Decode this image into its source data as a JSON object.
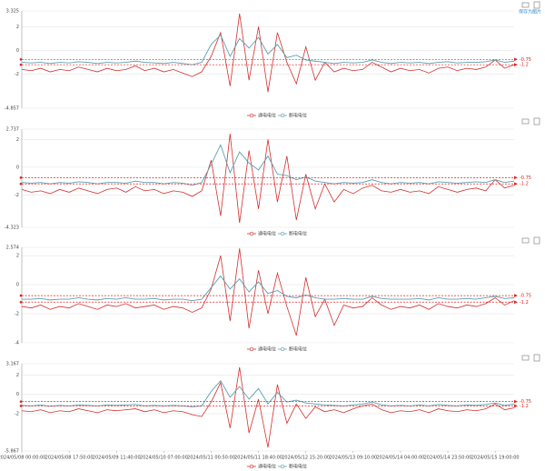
{
  "chart_data": [
    {
      "type": "line",
      "toolbox_label": "保存为图片",
      "ylim": [
        -4.857,
        3.325
      ],
      "yticks": [
        3.325,
        2,
        0,
        -2,
        -4.857
      ],
      "grid": true,
      "markLines": [
        -0.75,
        -1.2
      ],
      "markLineColor": "#e02020",
      "series": [
        {
          "name": "通电电位",
          "color": "#d42f2f",
          "values": [
            -1.6,
            -1.7,
            -1.5,
            -1.8,
            -1.6,
            -1.7,
            -1.4,
            -1.6,
            -1.8,
            -1.5,
            -1.7,
            -1.6,
            -1.3,
            -1.7,
            -1.5,
            -1.8,
            -1.6,
            -1.9,
            -2.2,
            -1.8,
            -0.5,
            1.5,
            -3.0,
            3.1,
            -2.5,
            2.0,
            -3.5,
            1.5,
            -1.0,
            -2.8,
            0.3,
            -2.5,
            -1.0,
            -1.8,
            -1.5,
            -1.7,
            -1.6,
            -1.0,
            -1.4,
            -1.8,
            -1.5,
            -1.7,
            -1.6,
            -1.9,
            -1.5,
            -1.4,
            -1.7,
            -1.5,
            -1.6,
            -1.4,
            -0.8,
            -1.5,
            -1.2
          ]
        },
        {
          "name": "断电电位",
          "color": "#5b9fb0",
          "values": [
            -1.0,
            -1.05,
            -1.0,
            -1.1,
            -1.0,
            -1.05,
            -0.95,
            -1.0,
            -1.1,
            -1.0,
            -1.05,
            -1.0,
            -0.9,
            -1.0,
            -1.05,
            -1.1,
            -1.0,
            -1.1,
            -1.2,
            -1.0,
            0.5,
            1.3,
            -0.5,
            1.0,
            0.2,
            1.1,
            -0.3,
            0.5,
            -0.6,
            -0.4,
            -0.8,
            -0.9,
            -1.0,
            -1.1,
            -1.0,
            -1.05,
            -1.0,
            -0.8,
            -1.0,
            -1.1,
            -1.0,
            -1.05,
            -1.0,
            -1.1,
            -1.0,
            -0.95,
            -1.05,
            -1.0,
            -1.0,
            -0.95,
            -0.8,
            -1.0,
            -0.9
          ]
        }
      ]
    },
    {
      "type": "line",
      "ylim": [
        -4.323,
        2.737
      ],
      "yticks": [
        2.737,
        2,
        0,
        -2,
        -4.323
      ],
      "grid": true,
      "markLines": [
        -0.75,
        -1.2
      ],
      "markLineColor": "#e02020",
      "series": [
        {
          "name": "通电电位",
          "color": "#d42f2f",
          "values": [
            -1.6,
            -1.8,
            -1.7,
            -1.9,
            -1.6,
            -1.8,
            -1.5,
            -1.7,
            -1.9,
            -1.6,
            -1.5,
            -1.8,
            -1.4,
            -1.7,
            -1.6,
            -1.9,
            -1.7,
            -1.8,
            -2.1,
            -1.7,
            0.5,
            -3.5,
            2.4,
            -4.0,
            1.2,
            -3.0,
            2.0,
            -2.5,
            0.8,
            -3.8,
            -0.5,
            -3.0,
            -1.2,
            -2.5,
            -1.6,
            -1.9,
            -1.5,
            -1.3,
            -1.7,
            -1.8,
            -1.6,
            -1.8,
            -1.7,
            -1.9,
            -1.4,
            -1.6,
            -1.8,
            -1.6,
            -1.5,
            -1.7,
            -0.9,
            -1.5,
            -1.3
          ]
        },
        {
          "name": "断电电位",
          "color": "#5b9fb0",
          "values": [
            -1.1,
            -1.15,
            -1.1,
            -1.2,
            -1.1,
            -1.15,
            -1.05,
            -1.1,
            -1.2,
            -1.1,
            -1.1,
            -1.15,
            -1.0,
            -1.1,
            -1.1,
            -1.2,
            -1.1,
            -1.15,
            -1.3,
            -1.1,
            0.2,
            1.6,
            -0.4,
            1.1,
            0.3,
            -0.2,
            0.8,
            -0.5,
            -0.6,
            -0.9,
            -0.7,
            -1.0,
            -1.1,
            -1.2,
            -1.1,
            -1.15,
            -1.1,
            -0.9,
            -1.1,
            -1.2,
            -1.1,
            -1.15,
            -1.1,
            -1.2,
            -1.05,
            -1.1,
            -1.15,
            -1.1,
            -1.05,
            -1.1,
            -0.9,
            -1.1,
            -1.0
          ]
        }
      ]
    },
    {
      "type": "line",
      "ylim": [
        -4,
        2.574
      ],
      "yticks": [
        2.574,
        2,
        0,
        -2,
        -4
      ],
      "grid": true,
      "markLines": [
        -0.75,
        -1.2
      ],
      "markLineColor": "#e02020",
      "series": [
        {
          "name": "通电电位",
          "color": "#d42f2f",
          "values": [
            -1.5,
            -1.6,
            -1.4,
            -1.7,
            -1.5,
            -1.6,
            -1.3,
            -1.5,
            -1.7,
            -1.4,
            -1.5,
            -1.3,
            -1.6,
            -1.5,
            -1.4,
            -1.7,
            -1.5,
            -1.6,
            -1.9,
            -1.6,
            -0.3,
            2.0,
            -2.5,
            2.5,
            -3.0,
            1.0,
            -2.0,
            0.8,
            -1.5,
            -3.5,
            0.5,
            -2.2,
            -1.0,
            -2.8,
            -1.4,
            -1.6,
            -1.5,
            -0.9,
            -1.4,
            -1.7,
            -1.5,
            -1.6,
            -1.4,
            -1.7,
            -1.3,
            -1.5,
            -1.6,
            -1.4,
            -1.5,
            -1.3,
            -0.9,
            -1.4,
            -1.1
          ]
        },
        {
          "name": "断电电位",
          "color": "#5b9fb0",
          "values": [
            -1.0,
            -1.0,
            -0.95,
            -1.05,
            -1.0,
            -1.0,
            -0.9,
            -1.0,
            -1.05,
            -0.95,
            -1.0,
            -0.9,
            -1.0,
            -1.0,
            -0.95,
            -1.05,
            -1.0,
            -1.0,
            -1.1,
            -1.0,
            -0.2,
            0.6,
            -0.3,
            0.4,
            -0.5,
            0.2,
            -0.6,
            -0.4,
            -0.8,
            -0.9,
            -0.7,
            -0.9,
            -1.0,
            -1.0,
            -0.95,
            -1.0,
            -1.0,
            -0.8,
            -0.95,
            -1.0,
            -1.0,
            -1.0,
            -0.95,
            -1.05,
            -0.9,
            -1.0,
            -1.0,
            -0.95,
            -1.0,
            -0.9,
            -0.8,
            -0.95,
            -0.9
          ]
        }
      ]
    },
    {
      "type": "line",
      "ylim": [
        -5.867,
        3.167
      ],
      "yticks": [
        3.167,
        2,
        0,
        -2,
        -5.867
      ],
      "grid": true,
      "markLines": [
        -0.75,
        -1.2
      ],
      "markLineColor": "#e02020",
      "categories": [
        "2024/05/08 00:00:00",
        null,
        null,
        null,
        null,
        "2024/05/08 17:50:00",
        null,
        null,
        null,
        null,
        "2024/05/09 11:40:00",
        null,
        null,
        null,
        null,
        "2024/05/10 07:00:00",
        null,
        null,
        null,
        null,
        "2024/05/11 00:50:00",
        null,
        null,
        null,
        null,
        "2024/05/11 18:40:00",
        null,
        null,
        null,
        null,
        "2024/05/12 15:20:00",
        null,
        null,
        null,
        null,
        "2024/05/13 09:10:00",
        null,
        null,
        null,
        null,
        "2024/05/14 04:00:00",
        null,
        null,
        null,
        null,
        "2024/05/14 23:50:00",
        null,
        null,
        null,
        null,
        "2024/05/15 19:00:00",
        null,
        null
      ],
      "series": [
        {
          "name": "通电电位",
          "color": "#d42f2f",
          "values": [
            -1.7,
            -1.8,
            -1.6,
            -1.9,
            -1.7,
            -1.8,
            -1.5,
            -1.7,
            -1.9,
            -1.6,
            -1.7,
            -1.6,
            -1.5,
            -1.8,
            -1.6,
            -1.9,
            -1.7,
            -1.8,
            -2.1,
            -2.3,
            -0.8,
            1.2,
            -3.5,
            2.8,
            -4.0,
            -0.5,
            -5.5,
            1.0,
            -3.0,
            -1.0,
            -2.5,
            -1.3,
            -1.8,
            -1.6,
            -1.9,
            -1.5,
            -1.2,
            -1.0,
            -1.6,
            -1.9,
            -1.7,
            -1.8,
            -1.6,
            -1.9,
            -1.5,
            -1.7,
            -1.8,
            -1.6,
            -1.7,
            -1.5,
            -1.0,
            -1.6,
            -1.4
          ]
        },
        {
          "name": "断电电位",
          "color": "#5b9fb0",
          "values": [
            -1.15,
            -1.2,
            -1.1,
            -1.25,
            -1.15,
            -1.2,
            -1.1,
            -1.15,
            -1.2,
            -1.1,
            -1.15,
            -1.1,
            -1.05,
            -1.2,
            -1.15,
            -1.2,
            -1.15,
            -1.2,
            -1.3,
            -1.2,
            0.3,
            1.4,
            -0.3,
            0.8,
            -0.5,
            0.6,
            -1.0,
            0.2,
            -0.8,
            -0.6,
            -0.9,
            -1.0,
            -1.1,
            -1.15,
            -1.2,
            -1.1,
            -1.0,
            -0.8,
            -1.1,
            -1.2,
            -1.15,
            -1.2,
            -1.1,
            -1.2,
            -1.05,
            -1.15,
            -1.2,
            -1.1,
            -1.15,
            -1.05,
            -0.9,
            -1.15,
            -1.0
          ]
        }
      ]
    }
  ]
}
